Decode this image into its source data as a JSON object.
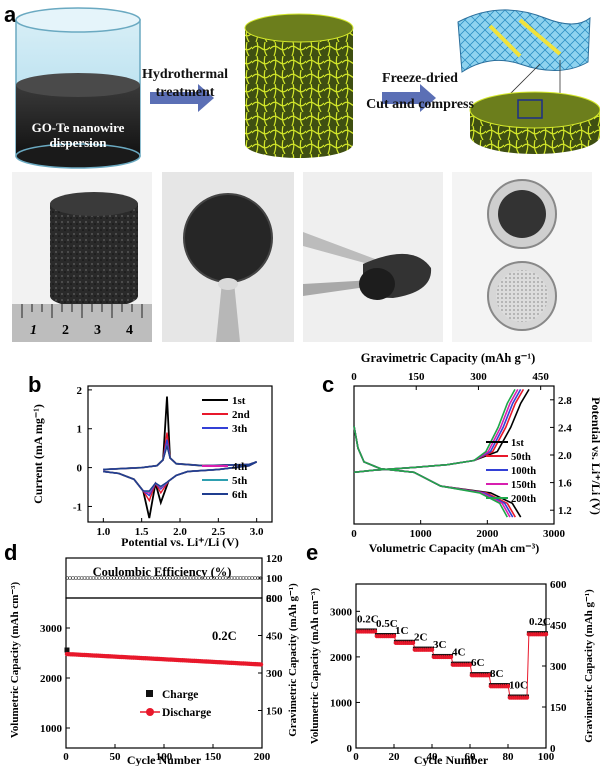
{
  "figure": {
    "panels": {
      "a": "a",
      "b": "b",
      "c": "c",
      "d": "d",
      "e": "e"
    },
    "schematic": {
      "beaker_label_1": "GO-Te nanowire",
      "beaker_label_2": "dispersion",
      "step1_label_1": "Hydrothermal",
      "step1_label_2": "treatment",
      "step2_label_1": "Freeze-dried",
      "step2_label_2": "Cut and compress"
    },
    "ruler_labels": [
      "1",
      "2",
      "3",
      "4"
    ]
  },
  "chart_data": [
    {
      "id": "b",
      "type": "line",
      "xlabel": "Potential vs. Li⁺/Li (V)",
      "ylabel": "Current (mA mg⁻¹)",
      "xlim": [
        0.8,
        3.2
      ],
      "ylim": [
        -1.4,
        2.1
      ],
      "xticks": [
        "1.0",
        "1.5",
        "2.0",
        "2.5",
        "3.0"
      ],
      "yticks": [
        "-1",
        "0",
        "1",
        "2"
      ],
      "legend": [
        {
          "name": "1st",
          "color": "#000000"
        },
        {
          "name": "2nd",
          "color": "#e8182b"
        },
        {
          "name": "3th",
          "color": "#3340d6"
        },
        {
          "name": "4th",
          "color": "#d81fb0"
        },
        {
          "name": "5th",
          "color": "#2e9fb0"
        },
        {
          "name": "6th",
          "color": "#1f3d8f"
        }
      ]
    },
    {
      "id": "c",
      "type": "line",
      "title": "Gravimetric  Capacity (mAh g⁻¹)",
      "xlabel": "Volumetric Capacity (mAh cm⁻³)",
      "ylabel": "Potential vs. Li⁺/Li (V)",
      "xlim": [
        0,
        3000
      ],
      "ylim": [
        1.0,
        3.0
      ],
      "xticks": [
        "0",
        "1000",
        "2000",
        "3000"
      ],
      "top_ticks": [
        "0",
        "150",
        "300",
        "450"
      ],
      "yticks": [
        "1.2",
        "1.6",
        "2.0",
        "2.4",
        "2.8"
      ],
      "legend": [
        {
          "name": "1st",
          "color": "#000000"
        },
        {
          "name": "50th",
          "color": "#e8182b"
        },
        {
          "name": "100th",
          "color": "#3340d6"
        },
        {
          "name": "150th",
          "color": "#d81fb0"
        },
        {
          "name": "200th",
          "color": "#1fa64a"
        }
      ]
    },
    {
      "id": "d",
      "type": "scatter",
      "subtitle": "Coulombic Efficiency (%)",
      "rate_label": "0.2C",
      "xlabel": "Cycle Number",
      "ylabel": "Volumetric Capacity (mAh cm⁻³)",
      "ylabel_right": "Gravimetric Capacity (mAh g⁻¹)",
      "xlim": [
        0,
        200
      ],
      "ylim": [
        600,
        3600
      ],
      "xticks": [
        "0",
        "50",
        "100",
        "150",
        "200"
      ],
      "yticks": [
        "1000",
        "2000",
        "3000"
      ],
      "right_ticks": [
        "150",
        "300",
        "450",
        "600"
      ],
      "ce_ticks": [
        "80",
        "100",
        "120"
      ],
      "ce_value": 100,
      "charge_start": 2560,
      "discharge_start": 2480,
      "discharge_end": 2270,
      "legend": [
        {
          "name": "Charge",
          "color": "#111111"
        },
        {
          "name": "Discharge",
          "color": "#e8182b"
        }
      ]
    },
    {
      "id": "e",
      "type": "scatter",
      "xlabel": "Cycle Number",
      "ylabel": "Volumetric Capacity (mAh cm⁻³)",
      "ylabel_right": "Gravimetric Capacity (mAh g⁻¹)",
      "xlim": [
        0,
        100
      ],
      "ylim": [
        0,
        3600
      ],
      "xticks": [
        "0",
        "20",
        "40",
        "60",
        "80",
        "100"
      ],
      "yticks": [
        "0",
        "1000",
        "2000",
        "3000"
      ],
      "right_ticks": [
        "0",
        "150",
        "300",
        "450",
        "600"
      ],
      "rates": [
        {
          "label": "0.2C",
          "x0": 0,
          "x1": 10,
          "v": 2580
        },
        {
          "label": "0.5C",
          "x0": 10,
          "x1": 20,
          "v": 2480
        },
        {
          "label": "1C",
          "x0": 20,
          "x1": 30,
          "v": 2330
        },
        {
          "label": "2C",
          "x0": 30,
          "x1": 40,
          "v": 2180
        },
        {
          "label": "3C",
          "x0": 40,
          "x1": 50,
          "v": 2020
        },
        {
          "label": "4C",
          "x0": 50,
          "x1": 60,
          "v": 1850
        },
        {
          "label": "6C",
          "x0": 60,
          "x1": 70,
          "v": 1620
        },
        {
          "label": "8C",
          "x0": 70,
          "x1": 80,
          "v": 1380
        },
        {
          "label": "10C",
          "x0": 80,
          "x1": 90,
          "v": 1130
        },
        {
          "label": "0.2C",
          "x0": 90,
          "x1": 100,
          "v": 2520
        }
      ]
    }
  ]
}
